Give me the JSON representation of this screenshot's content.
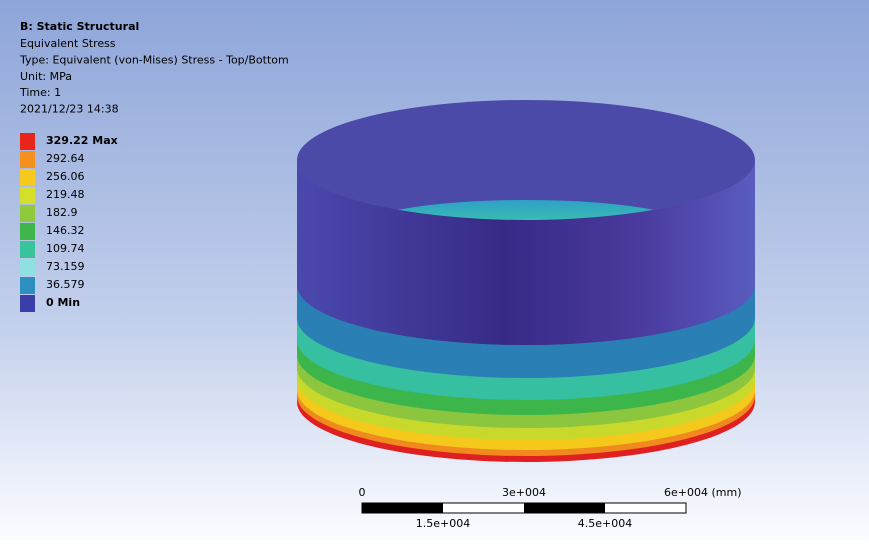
{
  "header": {
    "title": "B: Static Structural",
    "lines": [
      "Equivalent Stress",
      "Type: Equivalent (von-Mises) Stress - Top/Bottom",
      "Unit: MPa",
      "Time: 1",
      "2021/12/23 14:38"
    ]
  },
  "legend": {
    "entries": [
      {
        "label": "329.22 Max",
        "color": "#e8251a"
      },
      {
        "label": "292.64",
        "color": "#f5901e"
      },
      {
        "label": "256.06",
        "color": "#f6c91c"
      },
      {
        "label": "219.48",
        "color": "#d3df2a"
      },
      {
        "label": "182.9",
        "color": "#8fca3c"
      },
      {
        "label": "146.32",
        "color": "#3fb54c"
      },
      {
        "label": "109.74",
        "color": "#39c39a"
      },
      {
        "label": "73.159",
        "color": "#8fe0e0"
      },
      {
        "label": "36.579",
        "color": "#2f8fc0"
      },
      {
        "label": "0 Min",
        "color": "#3a3fa8"
      }
    ]
  },
  "scale_bar": {
    "top_labels": [
      "0",
      "3e+004",
      "6e+004 (mm)"
    ],
    "bottom_labels": [
      "1.5e+004",
      "4.5e+004"
    ]
  }
}
